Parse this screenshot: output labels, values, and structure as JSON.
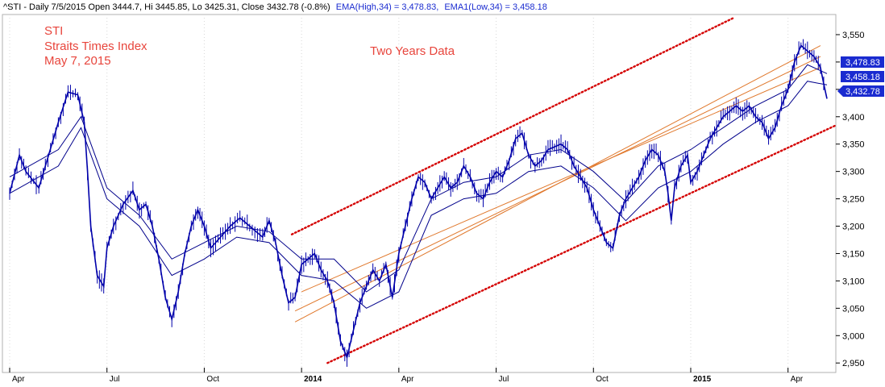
{
  "header": {
    "prefix": "^STI - Daily 7/5/2015 Open 3444.7, Hi 3445.85, Lo 3425.31, Close 3432.78 (-0.8%)",
    "ema_high": "EMA(High,34) = 3,478.83,",
    "ema_low": "EMA1(Low,34) = 3,458.18"
  },
  "annotations": {
    "line1": "STI",
    "line2": "Straits Times Index",
    "line3": "May 7, 2015",
    "center": "Two Years Data"
  },
  "colors": {
    "candle": "#0000aa",
    "ema": "#00008b",
    "channel_dotted": "#d40000",
    "channel_inner": "#e0782c",
    "annotation": "#e8453c",
    "tag_fill": "#1a2bd0"
  },
  "chart_data": {
    "type": "line",
    "instrument": "^STI",
    "ylim": [
      2940,
      3575
    ],
    "yticks": [
      2950,
      3000,
      3050,
      3100,
      3150,
      3200,
      3250,
      3300,
      3350,
      3400,
      3450,
      3500,
      3550
    ],
    "ytick_labels": [
      "2,950",
      "3,000",
      "3,050",
      "3,100",
      "3,150",
      "3,200",
      "3,250",
      "3,300",
      "3,350",
      "3,400",
      "3,450",
      "3,500",
      "3,550"
    ],
    "xlim": [
      0,
      25.3
    ],
    "xticks": [
      {
        "m": 0,
        "label": "Apr",
        "bold": false
      },
      {
        "m": 3,
        "label": "Jul",
        "bold": false
      },
      {
        "m": 6,
        "label": "Oct",
        "bold": false
      },
      {
        "m": 9,
        "label": "2014",
        "bold": true
      },
      {
        "m": 12,
        "label": "Apr",
        "bold": false
      },
      {
        "m": 15,
        "label": "Jul",
        "bold": false
      },
      {
        "m": 18,
        "label": "Oct",
        "bold": false
      },
      {
        "m": 21,
        "label": "2015",
        "bold": true
      },
      {
        "m": 24,
        "label": "Apr",
        "bold": false
      }
    ],
    "close_series": [
      [
        0,
        3260
      ],
      [
        0.3,
        3330
      ],
      [
        0.5,
        3300
      ],
      [
        0.9,
        3270
      ],
      [
        1.1,
        3310
      ],
      [
        1.5,
        3390
      ],
      [
        1.8,
        3445
      ],
      [
        2.1,
        3440
      ],
      [
        2.3,
        3390
      ],
      [
        2.4,
        3300
      ],
      [
        2.5,
        3200
      ],
      [
        2.7,
        3110
      ],
      [
        2.9,
        3090
      ],
      [
        3.0,
        3160
      ],
      [
        3.2,
        3200
      ],
      [
        3.5,
        3240
      ],
      [
        3.8,
        3265
      ],
      [
        4.0,
        3230
      ],
      [
        4.2,
        3240
      ],
      [
        4.4,
        3200
      ],
      [
        4.6,
        3140
      ],
      [
        4.8,
        3070
      ],
      [
        5.0,
        3030
      ],
      [
        5.2,
        3080
      ],
      [
        5.4,
        3150
      ],
      [
        5.6,
        3200
      ],
      [
        5.8,
        3230
      ],
      [
        6.0,
        3200
      ],
      [
        6.2,
        3160
      ],
      [
        6.5,
        3180
      ],
      [
        6.8,
        3200
      ],
      [
        7.1,
        3215
      ],
      [
        7.4,
        3200
      ],
      [
        7.8,
        3180
      ],
      [
        8.0,
        3210
      ],
      [
        8.2,
        3170
      ],
      [
        8.4,
        3110
      ],
      [
        8.6,
        3060
      ],
      [
        8.8,
        3070
      ],
      [
        9.0,
        3130
      ],
      [
        9.2,
        3140
      ],
      [
        9.4,
        3150
      ],
      [
        9.6,
        3120
      ],
      [
        9.8,
        3100
      ],
      [
        10.0,
        3060
      ],
      [
        10.2,
        2990
      ],
      [
        10.4,
        2960
      ],
      [
        10.6,
        3010
      ],
      [
        10.8,
        3060
      ],
      [
        11.0,
        3090
      ],
      [
        11.2,
        3120
      ],
      [
        11.4,
        3100
      ],
      [
        11.6,
        3130
      ],
      [
        11.8,
        3070
      ],
      [
        12.0,
        3150
      ],
      [
        12.2,
        3200
      ],
      [
        12.4,
        3250
      ],
      [
        12.6,
        3290
      ],
      [
        12.8,
        3280
      ],
      [
        13.0,
        3250
      ],
      [
        13.2,
        3270
      ],
      [
        13.4,
        3290
      ],
      [
        13.6,
        3270
      ],
      [
        13.8,
        3280
      ],
      [
        14.0,
        3310
      ],
      [
        14.2,
        3290
      ],
      [
        14.4,
        3260
      ],
      [
        14.6,
        3250
      ],
      [
        14.8,
        3280
      ],
      [
        15.0,
        3300
      ],
      [
        15.2,
        3290
      ],
      [
        15.4,
        3320
      ],
      [
        15.6,
        3360
      ],
      [
        15.8,
        3370
      ],
      [
        16.0,
        3330
      ],
      [
        16.2,
        3310
      ],
      [
        16.4,
        3320
      ],
      [
        16.6,
        3340
      ],
      [
        16.8,
        3345
      ],
      [
        17.0,
        3350
      ],
      [
        17.2,
        3340
      ],
      [
        17.4,
        3310
      ],
      [
        17.6,
        3290
      ],
      [
        17.8,
        3270
      ],
      [
        18.0,
        3230
      ],
      [
        18.2,
        3200
      ],
      [
        18.4,
        3170
      ],
      [
        18.6,
        3160
      ],
      [
        18.8,
        3220
      ],
      [
        19.0,
        3250
      ],
      [
        19.2,
        3270
      ],
      [
        19.4,
        3290
      ],
      [
        19.6,
        3320
      ],
      [
        19.8,
        3340
      ],
      [
        20.0,
        3330
      ],
      [
        20.2,
        3300
      ],
      [
        20.3,
        3260
      ],
      [
        20.4,
        3210
      ],
      [
        20.5,
        3270
      ],
      [
        20.7,
        3310
      ],
      [
        20.9,
        3330
      ],
      [
        21.0,
        3280
      ],
      [
        21.2,
        3300
      ],
      [
        21.4,
        3330
      ],
      [
        21.6,
        3360
      ],
      [
        21.8,
        3380
      ],
      [
        22.0,
        3400
      ],
      [
        22.2,
        3410
      ],
      [
        22.4,
        3420
      ],
      [
        22.6,
        3410
      ],
      [
        22.8,
        3420
      ],
      [
        23.0,
        3400
      ],
      [
        23.2,
        3390
      ],
      [
        23.4,
        3360
      ],
      [
        23.6,
        3380
      ],
      [
        23.8,
        3420
      ],
      [
        24.0,
        3450
      ],
      [
        24.2,
        3500
      ],
      [
        24.4,
        3530
      ],
      [
        24.6,
        3520
      ],
      [
        24.8,
        3510
      ],
      [
        25.0,
        3490
      ],
      [
        25.1,
        3460
      ],
      [
        25.2,
        3433
      ]
    ],
    "ema_high": [
      [
        0,
        3290
      ],
      [
        1.5,
        3340
      ],
      [
        2.2,
        3400
      ],
      [
        3.0,
        3270
      ],
      [
        4.0,
        3220
      ],
      [
        5.0,
        3140
      ],
      [
        6.0,
        3170
      ],
      [
        7.0,
        3200
      ],
      [
        8.0,
        3190
      ],
      [
        9.0,
        3140
      ],
      [
        10.0,
        3140
      ],
      [
        11.0,
        3080
      ],
      [
        12.0,
        3120
      ],
      [
        13.0,
        3250
      ],
      [
        14.0,
        3280
      ],
      [
        15.0,
        3290
      ],
      [
        16.0,
        3330
      ],
      [
        17.0,
        3340
      ],
      [
        18.0,
        3300
      ],
      [
        19.0,
        3245
      ],
      [
        20.0,
        3310
      ],
      [
        21.0,
        3340
      ],
      [
        22.0,
        3380
      ],
      [
        23.0,
        3420
      ],
      [
        24.0,
        3450
      ],
      [
        24.6,
        3495
      ],
      [
        25.2,
        3478.83
      ]
    ],
    "ema_low": [
      [
        0,
        3260
      ],
      [
        1.5,
        3310
      ],
      [
        2.2,
        3380
      ],
      [
        3.0,
        3250
      ],
      [
        4.0,
        3200
      ],
      [
        5.0,
        3110
      ],
      [
        6.0,
        3140
      ],
      [
        7.0,
        3180
      ],
      [
        8.0,
        3170
      ],
      [
        9.0,
        3110
      ],
      [
        10.0,
        3100
      ],
      [
        11.0,
        3050
      ],
      [
        12.0,
        3080
      ],
      [
        13.0,
        3220
      ],
      [
        14.0,
        3250
      ],
      [
        15.0,
        3260
      ],
      [
        16.0,
        3300
      ],
      [
        17.0,
        3310
      ],
      [
        18.0,
        3270
      ],
      [
        19.0,
        3210
      ],
      [
        20.0,
        3270
      ],
      [
        21.0,
        3300
      ],
      [
        22.0,
        3350
      ],
      [
        23.0,
        3390
      ],
      [
        24.0,
        3420
      ],
      [
        24.6,
        3465
      ],
      [
        25.2,
        3458.18
      ]
    ],
    "channel_dotted": [
      {
        "from": [
          8.7,
          3185
        ],
        "to": [
          22.3,
          3580
        ]
      },
      {
        "from": [
          9.8,
          2950
        ],
        "to": [
          25.5,
          3385
        ]
      }
    ],
    "channel_inner": [
      {
        "from": [
          8.8,
          3025
        ],
        "to": [
          25.0,
          3530
        ]
      },
      {
        "from": [
          8.8,
          3045
        ],
        "to": [
          25.0,
          3510
        ]
      },
      {
        "from": [
          9.0,
          3080
        ],
        "to": [
          25.0,
          3490
        ]
      }
    ],
    "price_tags": [
      {
        "value": 3478.83,
        "label": "3,478.83"
      },
      {
        "value": 3458.18,
        "label": "3,458.18"
      },
      {
        "value": 3432.78,
        "label": "3,432.78"
      }
    ]
  }
}
